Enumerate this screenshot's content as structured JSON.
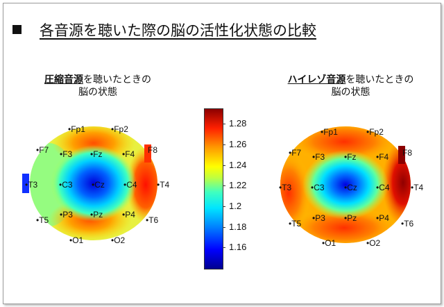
{
  "title": "各音源を聴いた際の脳の活性化状態の比較",
  "left_panel": {
    "caption_bold": "圧縮音源",
    "caption_rest": "を聴いたときの",
    "caption_line2": "脳の状態"
  },
  "right_panel": {
    "caption_bold": "ハイレゾ音源",
    "caption_rest": "を聴いたときの",
    "caption_line2": "脳の状態"
  },
  "electrodes": {
    "Fp1": "•Fp1",
    "Fp2": "•Fp2",
    "F7": "•F7",
    "F3": "•F3",
    "Fz": "•Fz",
    "F4": "•F4",
    "F8": "F8",
    "T3": "•T3",
    "C3": "•C3",
    "Cz": "•Cz",
    "C4": "•C4",
    "T4": "•T4",
    "T5": "•T5",
    "P3": "•P3",
    "Pz": "•Pz",
    "P4": "•P4",
    "T6": "•T6",
    "O1": "•O1",
    "O2": "•O2"
  },
  "colorbar": {
    "min": 1.14,
    "max": 1.295,
    "ticks": [
      "1.28",
      "1.26",
      "1.24",
      "1.22",
      "1.2",
      "1.18",
      "1.16"
    ],
    "tick_values": [
      1.28,
      1.26,
      1.24,
      1.22,
      1.2,
      1.18,
      1.16
    ],
    "colors": [
      "#00008f",
      "#0000ff",
      "#00e5ff",
      "#ffff00",
      "#ff2000",
      "#8b0000"
    ]
  }
}
